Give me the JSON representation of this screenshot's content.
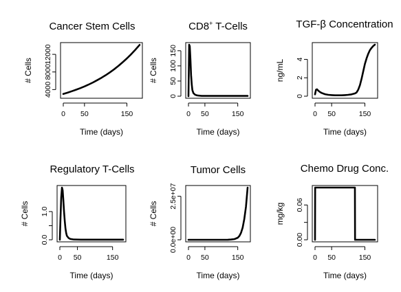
{
  "chart_data": [
    {
      "type": "line",
      "title": "Cancer Stem Cells",
      "xlabel": "Time (days)",
      "ylabel": "# Cells",
      "xlim": [
        0,
        180
      ],
      "ylim": [
        2500,
        14200
      ],
      "xticks": [
        0,
        50,
        150
      ],
      "yticks": [
        4000,
        8000,
        12000
      ],
      "ytick_labels": [
        "4000",
        "8000",
        "12000"
      ],
      "series": [
        {
          "x": [
            0,
            10,
            20,
            30,
            40,
            50,
            60,
            70,
            80,
            90,
            100,
            110,
            120,
            130,
            140,
            150,
            160,
            170,
            180
          ],
          "values": [
            3000,
            3300,
            3620,
            3960,
            4320,
            4720,
            5150,
            5620,
            6130,
            6680,
            7280,
            7920,
            8620,
            9380,
            10200,
            11080,
            12030,
            13050,
            14150
          ]
        }
      ]
    },
    {
      "type": "line",
      "title": "CD8",
      "title_superscript": "+",
      "title_suffix": " T-Cells",
      "xlabel": "Time (days)",
      "ylabel": "# Cells",
      "xlim": [
        0,
        180
      ],
      "ylim": [
        0,
        170
      ],
      "xticks": [
        0,
        50,
        150
      ],
      "yticks": [
        0,
        50,
        100,
        150
      ],
      "ytick_labels": [
        "0",
        "50",
        "100",
        "150"
      ],
      "series": [
        {
          "x": [
            0,
            2,
            4,
            6,
            8,
            10,
            12,
            15,
            20,
            25,
            30,
            40,
            60,
            100,
            140,
            180
          ],
          "values": [
            0,
            170,
            165,
            120,
            70,
            38,
            20,
            10,
            5,
            3,
            2,
            1,
            1,
            1,
            1,
            1
          ]
        }
      ]
    },
    {
      "type": "line",
      "title": "TGF-β Concentration",
      "xlabel": "Time (days)",
      "ylabel": "ng/mL",
      "xlim": [
        0,
        180
      ],
      "ylim": [
        0,
        5.6
      ],
      "xticks": [
        0,
        50,
        150
      ],
      "yticks": [
        0,
        2,
        4
      ],
      "ytick_labels": [
        "0",
        "2",
        "4"
      ],
      "series": [
        {
          "x": [
            0,
            3,
            6,
            10,
            15,
            20,
            30,
            40,
            50,
            60,
            70,
            80,
            90,
            100,
            110,
            120,
            125,
            130,
            135,
            140,
            145,
            150,
            155,
            160,
            165,
            170,
            175,
            180
          ],
          "values": [
            0.2,
            0.7,
            0.75,
            0.6,
            0.45,
            0.35,
            0.22,
            0.15,
            0.12,
            0.1,
            0.1,
            0.1,
            0.12,
            0.15,
            0.2,
            0.3,
            0.4,
            0.7,
            1.2,
            1.9,
            2.7,
            3.5,
            4.1,
            4.6,
            5.0,
            5.25,
            5.45,
            5.6
          ]
        }
      ]
    },
    {
      "type": "line",
      "title": "Regulatory T-Cells",
      "xlabel": "Time (days)",
      "ylabel": "# Cells",
      "xlim": [
        0,
        180
      ],
      "ylim": [
        0,
        1.85
      ],
      "xticks": [
        0,
        50,
        150
      ],
      "yticks": [
        0,
        0.5,
        1.0
      ],
      "ytick_labels": [
        "0.0",
        "",
        "1.0"
      ],
      "series": [
        {
          "x": [
            0,
            2,
            4,
            6,
            8,
            10,
            12,
            14,
            16,
            18,
            20,
            25,
            30,
            40,
            60,
            100,
            140,
            180
          ],
          "values": [
            0,
            0.8,
            1.5,
            1.85,
            1.75,
            1.4,
            1.0,
            0.65,
            0.4,
            0.24,
            0.14,
            0.06,
            0.03,
            0.01,
            0.005,
            0.005,
            0.005,
            0.005
          ]
        }
      ]
    },
    {
      "type": "line",
      "title": "Tumor Cells",
      "xlabel": "Time (days)",
      "ylabel": "# Cells",
      "xlim": [
        0,
        180
      ],
      "ylim": [
        0,
        30000000
      ],
      "xticks": [
        0,
        50,
        150
      ],
      "yticks": [
        0,
        25000000
      ],
      "ytick_labels": [
        "0.0e+00",
        "2.5e+07"
      ],
      "series": [
        {
          "x": [
            0,
            20,
            40,
            60,
            80,
            100,
            120,
            130,
            140,
            150,
            155,
            160,
            165,
            170,
            175,
            180
          ],
          "values": [
            0,
            0,
            0,
            0,
            0,
            0,
            50000,
            150000,
            400000,
            1200000,
            2200000,
            4000000,
            7000000,
            12000000,
            19000000,
            30000000
          ]
        }
      ]
    },
    {
      "type": "line",
      "title": "Chemo Drug Conc.",
      "xlabel": "Time (days)",
      "ylabel": "mg/kg",
      "xlim": [
        0,
        180
      ],
      "ylim": [
        0,
        0.09
      ],
      "xticks": [
        0,
        50,
        150
      ],
      "yticks": [
        0,
        0.03,
        0.06
      ],
      "ytick_labels": [
        "0.00",
        "",
        "0.06"
      ],
      "series": [
        {
          "x": [
            0,
            0.5,
            120,
            120.5,
            180
          ],
          "values": [
            0,
            0.09,
            0.09,
            0,
            0
          ]
        }
      ]
    }
  ]
}
